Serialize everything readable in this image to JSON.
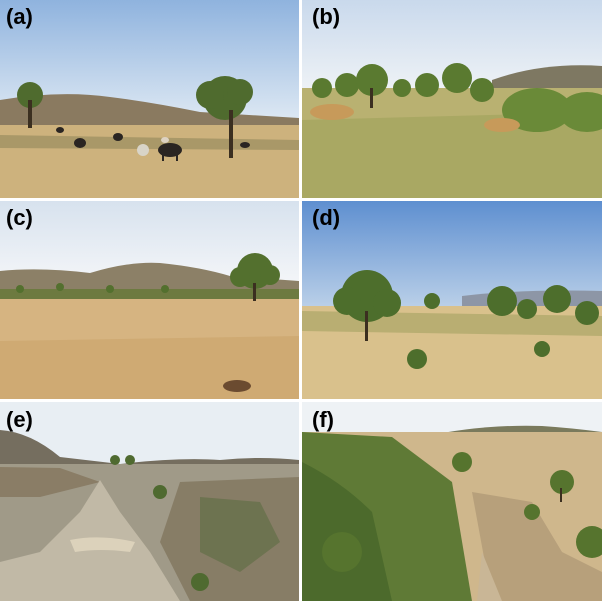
{
  "figure": {
    "panels": [
      {
        "label": "(a)",
        "scene": "grazing-cattle-savanna"
      },
      {
        "label": "(b)",
        "scene": "green-grass-woodland"
      },
      {
        "label": "(c)",
        "scene": "dry-open-grassland"
      },
      {
        "label": "(d)",
        "scene": "acacia-shrub-grassland"
      },
      {
        "label": "(e)",
        "scene": "eroded-gully-bare-land"
      },
      {
        "label": "(f)",
        "scene": "vegetated-ravine"
      }
    ]
  }
}
